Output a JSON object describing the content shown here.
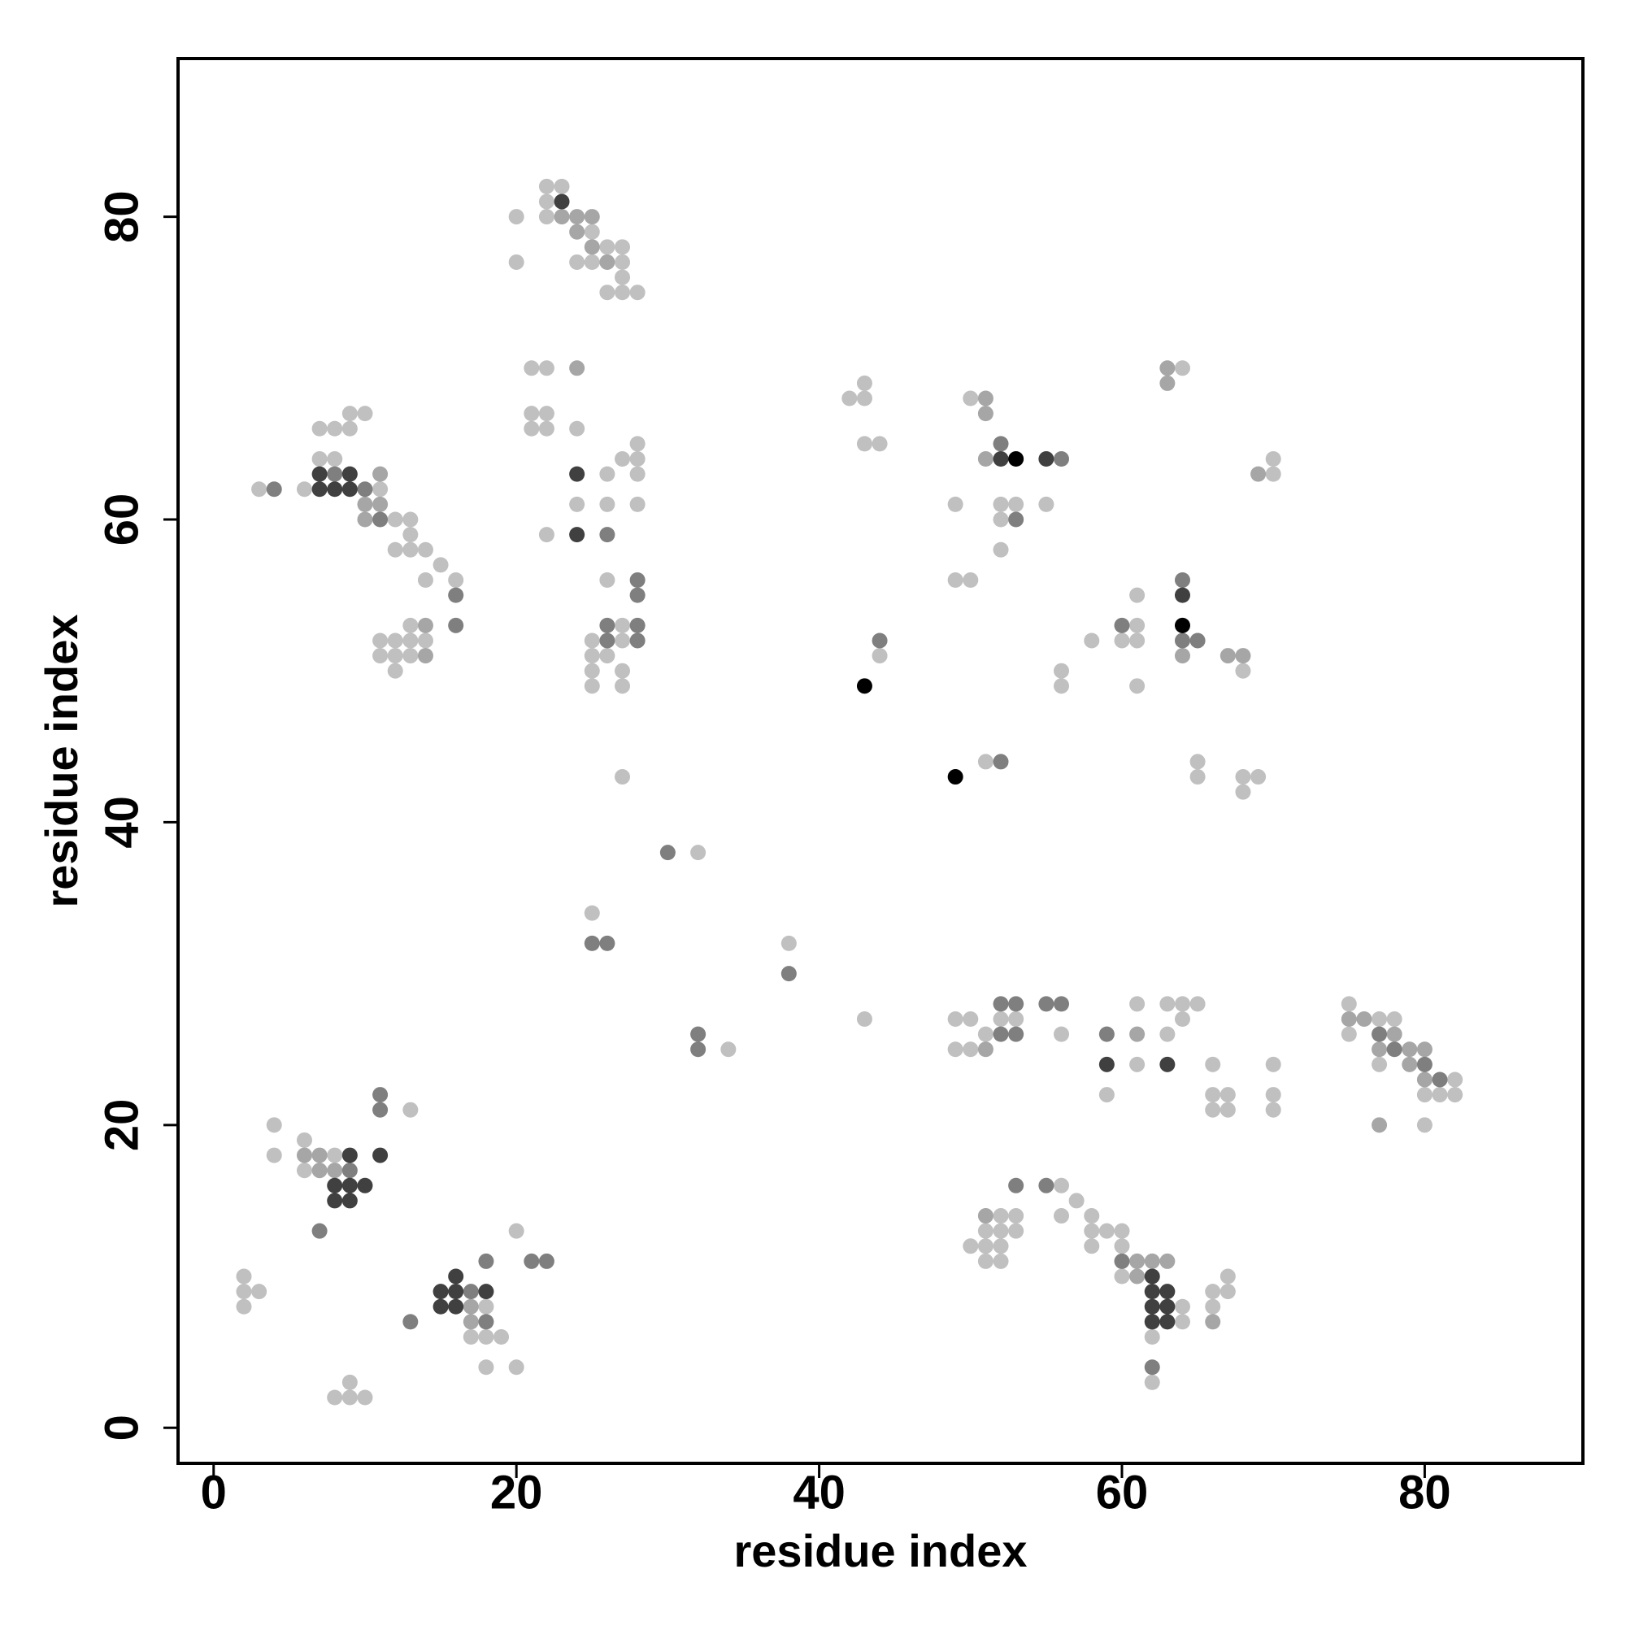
{
  "chart_data": {
    "type": "scatter",
    "x_label": "residue index",
    "y_label": "residue index",
    "xlim": [
      -2.35,
      90.45
    ],
    "ylim": [
      -2.35,
      90.45
    ],
    "xticks": [
      0,
      20,
      40,
      60,
      80
    ],
    "yticks": [
      0,
      20,
      40,
      60,
      80
    ],
    "series": [
      {
        "color": "#c0c0c0",
        "x": [
          22,
          23,
          22,
          20,
          22,
          25,
          26,
          27,
          20,
          24,
          25,
          27,
          27,
          26,
          27,
          28,
          21,
          22,
          21,
          22,
          21,
          22,
          24,
          28,
          27,
          28,
          26,
          28,
          24,
          26,
          28,
          22,
          26,
          27,
          25,
          27,
          25,
          26,
          25,
          27,
          25,
          27,
          27,
          3,
          6,
          11,
          7,
          8,
          7,
          8,
          9,
          9,
          10,
          12,
          13,
          13,
          12,
          13,
          14,
          15,
          14,
          16,
          13,
          11,
          12,
          13,
          14,
          11,
          12,
          13,
          12,
          42,
          43,
          43,
          43,
          44,
          44,
          50,
          52,
          53,
          52,
          49,
          55,
          52,
          49,
          50,
          51,
          64,
          70,
          70,
          61,
          61,
          60,
          61,
          58,
          68,
          56,
          56,
          61,
          65,
          65,
          68,
          69,
          68,
          32,
          25,
          38,
          43,
          34,
          49,
          50,
          52,
          53,
          51,
          49,
          50,
          56,
          59,
          61,
          61,
          63,
          64,
          65,
          64,
          63,
          66,
          66,
          67,
          66,
          67,
          70,
          70,
          70,
          75,
          77,
          78,
          75,
          77,
          82,
          80,
          81,
          82,
          80,
          2,
          2,
          3,
          2,
          4,
          4,
          6,
          8,
          6,
          13,
          9,
          8,
          9,
          10,
          18,
          17,
          18,
          19,
          18,
          20,
          20,
          52,
          53,
          51,
          52,
          53,
          50,
          51,
          52,
          51,
          52,
          56,
          57,
          56,
          58,
          58,
          59,
          60,
          58,
          60,
          60,
          64,
          64,
          62,
          62,
          66,
          67,
          67,
          66
        ],
        "y": [
          82,
          82,
          81,
          80,
          80,
          79,
          78,
          78,
          77,
          77,
          77,
          77,
          76,
          75,
          75,
          75,
          70,
          70,
          67,
          67,
          66,
          66,
          66,
          65,
          64,
          64,
          63,
          63,
          61,
          61,
          61,
          59,
          56,
          53,
          52,
          52,
          51,
          51,
          50,
          50,
          49,
          49,
          43,
          62,
          62,
          62,
          64,
          64,
          66,
          66,
          66,
          67,
          67,
          60,
          60,
          59,
          58,
          58,
          58,
          57,
          56,
          56,
          53,
          52,
          52,
          52,
          52,
          51,
          51,
          51,
          50,
          68,
          68,
          69,
          65,
          65,
          51,
          68,
          61,
          61,
          60,
          61,
          61,
          58,
          56,
          56,
          44,
          70,
          63,
          64,
          55,
          53,
          52,
          52,
          52,
          50,
          50,
          49,
          49,
          44,
          43,
          43,
          43,
          42,
          38,
          34,
          32,
          27,
          25,
          27,
          27,
          27,
          27,
          26,
          25,
          25,
          26,
          22,
          28,
          24,
          28,
          28,
          28,
          27,
          26,
          24,
          22,
          22,
          21,
          21,
          24,
          22,
          21,
          28,
          27,
          27,
          26,
          24,
          23,
          22,
          22,
          22,
          20,
          10,
          9,
          9,
          8,
          20,
          18,
          19,
          18,
          17,
          21,
          3,
          2,
          2,
          2,
          8,
          6,
          6,
          6,
          4,
          4,
          13,
          14,
          14,
          13,
          13,
          13,
          12,
          12,
          12,
          11,
          11,
          16,
          15,
          14,
          14,
          13,
          13,
          13,
          12,
          12,
          10,
          8,
          7,
          6,
          3,
          9,
          9,
          10,
          8
        ]
      },
      {
        "color": "#a6a6a6",
        "x": [
          23,
          24,
          25,
          24,
          25,
          26,
          24,
          11,
          10,
          11,
          10,
          14,
          14,
          51,
          51,
          51,
          63,
          63,
          69,
          64,
          67,
          68,
          51,
          61,
          75,
          76,
          78,
          77,
          79,
          80,
          79,
          80,
          77,
          6,
          7,
          7,
          8,
          17,
          17,
          51,
          61,
          62,
          63,
          61,
          66
        ],
        "y": [
          80,
          80,
          80,
          79,
          78,
          77,
          70,
          63,
          61,
          61,
          60,
          53,
          51,
          68,
          67,
          64,
          70,
          69,
          63,
          51,
          51,
          51,
          25,
          26,
          27,
          27,
          26,
          25,
          25,
          25,
          24,
          23,
          20,
          18,
          18,
          17,
          17,
          8,
          7,
          14,
          11,
          11,
          11,
          10,
          7
        ]
      },
      {
        "color": "#7f7f7f",
        "x": [
          26,
          28,
          28,
          26,
          28,
          26,
          28,
          4,
          10,
          8,
          11,
          16,
          16,
          44,
          52,
          56,
          53,
          52,
          64,
          60,
          64,
          65,
          30,
          25,
          26,
          38,
          32,
          32,
          52,
          53,
          52,
          53,
          55,
          56,
          59,
          77,
          78,
          80,
          81,
          9,
          7,
          11,
          11,
          13,
          17,
          18,
          18,
          21,
          22,
          53,
          55,
          60,
          62
        ],
        "y": [
          59,
          56,
          55,
          53,
          53,
          52,
          52,
          62,
          62,
          63,
          60,
          55,
          53,
          52,
          65,
          64,
          60,
          44,
          56,
          53,
          52,
          52,
          38,
          32,
          32,
          30,
          26,
          25,
          28,
          28,
          26,
          26,
          28,
          28,
          26,
          26,
          25,
          24,
          23,
          17,
          13,
          22,
          21,
          7,
          9,
          7,
          11,
          11,
          11,
          16,
          16,
          11,
          4
        ]
      },
      {
        "color": "#404040",
        "x": [
          23,
          24,
          24,
          7,
          8,
          9,
          7,
          9,
          52,
          55,
          64,
          59,
          63,
          9,
          8,
          9,
          10,
          8,
          9,
          11,
          15,
          16,
          16,
          18,
          15,
          16,
          62,
          62,
          63,
          62,
          63,
          62,
          63
        ],
        "y": [
          81,
          63,
          59,
          62,
          62,
          62,
          63,
          63,
          64,
          64,
          55,
          24,
          24,
          18,
          16,
          16,
          16,
          15,
          15,
          18,
          9,
          9,
          10,
          9,
          8,
          8,
          10,
          9,
          9,
          8,
          8,
          7,
          7
        ]
      },
      {
        "color": "#000000",
        "x": [
          43,
          53,
          64,
          49
        ],
        "y": [
          49,
          64,
          53,
          43
        ]
      }
    ]
  }
}
